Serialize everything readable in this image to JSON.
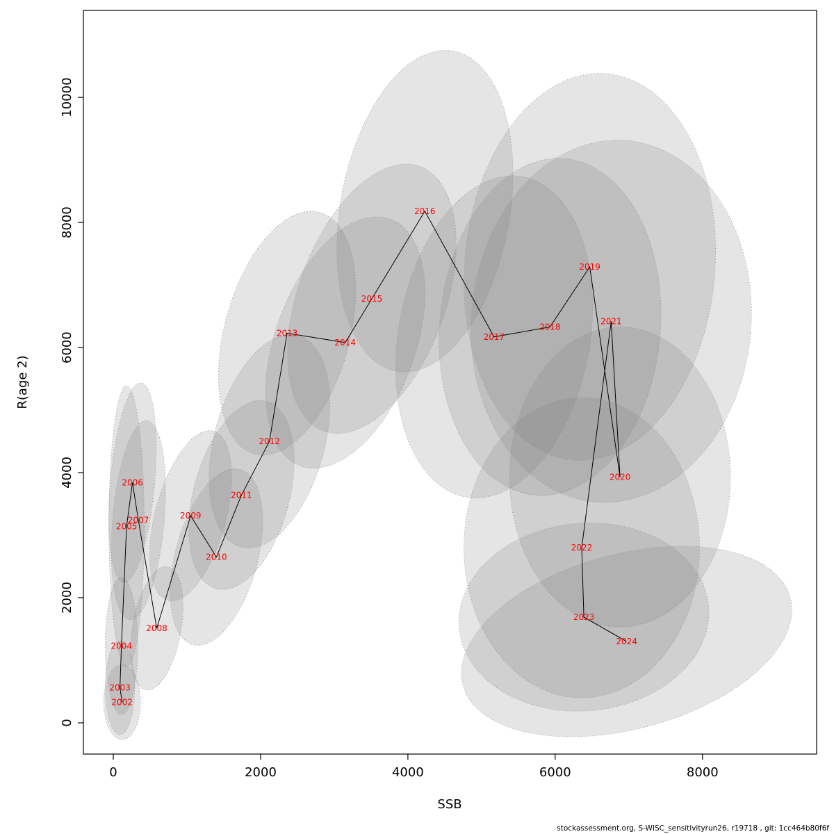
{
  "footer": "stockassessment.org, S-WISC_sensitivityrun26, r19718 , git: 1cc464b80f6f",
  "chart_data": {
    "type": "scatter",
    "title": "",
    "xlabel": "SSB",
    "ylabel": "R(age 2)",
    "xlim": [
      -406,
      9550
    ],
    "ylim": [
      -500,
      11390
    ],
    "xticks": [
      0,
      2000,
      4000,
      6000,
      8000
    ],
    "yticks": [
      0,
      2000,
      4000,
      6000,
      8000,
      10000
    ],
    "grid": false,
    "legend": "none",
    "style": {
      "label_color": "#ff0000",
      "line_color": "#000000",
      "ellipse_fill": "#7f7f7f",
      "ellipse_fill_opacity": 0.2,
      "ellipse_stroke": "#9a9a9a",
      "axis_color": "#000000"
    },
    "series_note": "Stock-recruitment trajectory by year with confidence ellipses; ellipse radii in data units",
    "points": [
      {
        "year": 2002,
        "ssb": 120,
        "r": 330,
        "rx": 250,
        "ry": 600,
        "rot": 0
      },
      {
        "year": 2003,
        "ssb": 90,
        "r": 560,
        "rx": 200,
        "ry": 750,
        "rot": 0
      },
      {
        "year": 2004,
        "ssb": 110,
        "r": 1230,
        "rx": 220,
        "ry": 1100,
        "rot": 0
      },
      {
        "year": 2005,
        "ssb": 180,
        "r": 3140,
        "rx": 240,
        "ry": 2250,
        "rot": 0
      },
      {
        "year": 2006,
        "ssb": 260,
        "r": 3840,
        "rx": 300,
        "ry": 1600,
        "rot": 5
      },
      {
        "year": 2007,
        "ssb": 340,
        "r": 3240,
        "rx": 350,
        "ry": 1600,
        "rot": 5
      },
      {
        "year": 2008,
        "ssb": 590,
        "r": 1510,
        "rx": 330,
        "ry": 1000,
        "rot": 10
      },
      {
        "year": 2009,
        "ssb": 1050,
        "r": 3310,
        "rx": 480,
        "ry": 1400,
        "rot": 15
      },
      {
        "year": 2010,
        "ssb": 1400,
        "r": 2650,
        "rx": 560,
        "ry": 1450,
        "rot": 15
      },
      {
        "year": 2011,
        "ssb": 1740,
        "r": 3640,
        "rx": 650,
        "ry": 1550,
        "rot": 15
      },
      {
        "year": 2012,
        "ssb": 2120,
        "r": 4500,
        "rx": 750,
        "ry": 1750,
        "rot": 15
      },
      {
        "year": 2013,
        "ssb": 2360,
        "r": 6230,
        "rx": 850,
        "ry": 2000,
        "rot": 15
      },
      {
        "year": 2014,
        "ssb": 3150,
        "r": 6080,
        "rx": 950,
        "ry": 2100,
        "rot": 20
      },
      {
        "year": 2015,
        "ssb": 3510,
        "r": 6780,
        "rx": 1000,
        "ry": 2250,
        "rot": 20
      },
      {
        "year": 2016,
        "ssb": 4230,
        "r": 8180,
        "rx": 1150,
        "ry": 2600,
        "rot": 10
      },
      {
        "year": 2017,
        "ssb": 5170,
        "r": 6170,
        "rx": 1300,
        "ry": 2600,
        "rot": 10
      },
      {
        "year": 2018,
        "ssb": 5930,
        "r": 6330,
        "rx": 1500,
        "ry": 2700,
        "rot": 5
      },
      {
        "year": 2019,
        "ssb": 6470,
        "r": 7290,
        "rx": 1700,
        "ry": 3100,
        "rot": 5
      },
      {
        "year": 2020,
        "ssb": 6880,
        "r": 3930,
        "rx": 1500,
        "ry": 2400,
        "rot": 0
      },
      {
        "year": 2021,
        "ssb": 6760,
        "r": 6420,
        "rx": 1900,
        "ry": 2900,
        "rot": 5
      },
      {
        "year": 2022,
        "ssb": 6360,
        "r": 2800,
        "rx": 1600,
        "ry": 2400,
        "rot": 0
      },
      {
        "year": 2023,
        "ssb": 6390,
        "r": 1690,
        "rx": 1700,
        "ry": 1500,
        "rot": -5
      },
      {
        "year": 2024,
        "ssb": 6970,
        "r": 1300,
        "rx": 2300,
        "ry": 1400,
        "rot": -15
      }
    ]
  }
}
